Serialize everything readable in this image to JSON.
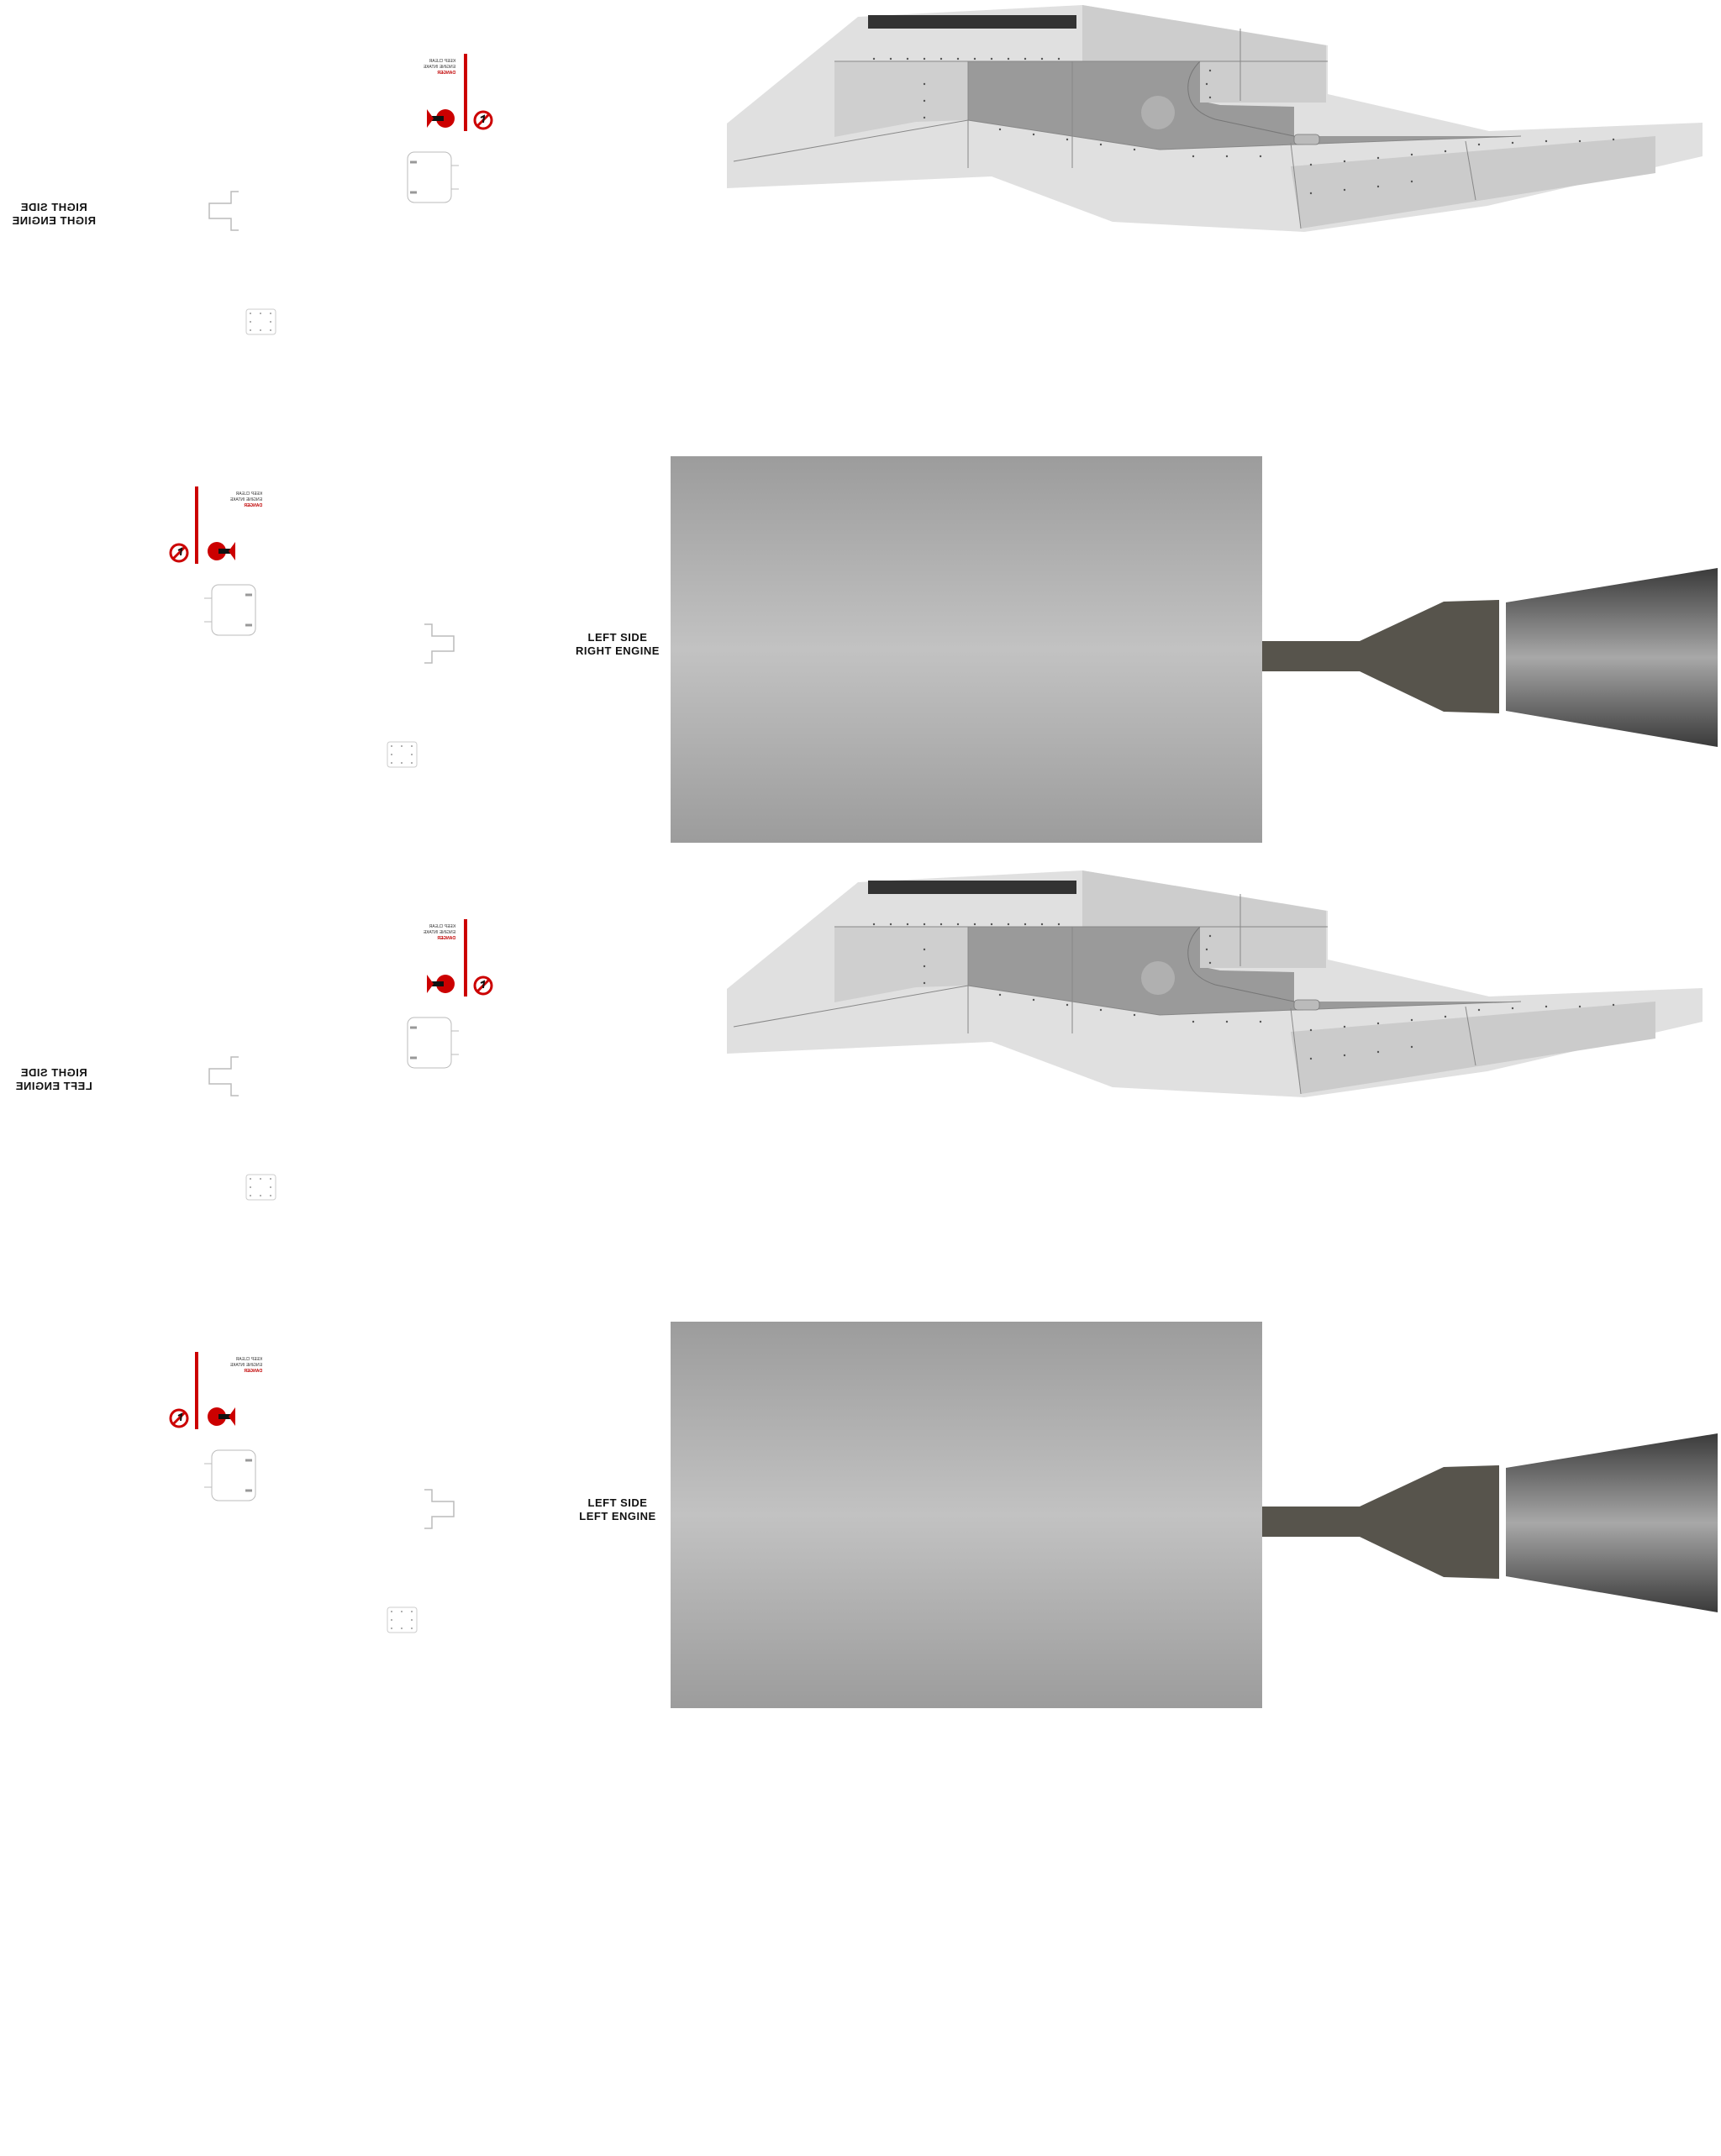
{
  "texture_sheet": {
    "panels": [
      {
        "id": "right-engine-right-side",
        "side_label": "RIGHT SIDE",
        "engine_label": "RIGHT ENGINE",
        "mirrored_text": true,
        "decal": {
          "warning_line_1": "DANGER",
          "warning_line_2": "ENGINE INTAKE",
          "warning_line_3": "KEEP CLEAR"
        }
      },
      {
        "id": "right-engine-left-side",
        "side_label": "LEFT SIDE",
        "engine_label": "RIGHT ENGINE",
        "mirrored_text": false,
        "decal": {
          "warning_line_1": "DANGER",
          "warning_line_2": "ENGINE INTAKE",
          "warning_line_3": "KEEP CLEAR"
        }
      },
      {
        "id": "left-engine-right-side",
        "side_label": "RIGHT SIDE",
        "engine_label": "LEFT ENGINE",
        "mirrored_text": true,
        "decal": {
          "warning_line_1": "DANGER",
          "warning_line_2": "ENGINE INTAKE",
          "warning_line_3": "KEEP CLEAR"
        }
      },
      {
        "id": "left-engine-left-side",
        "side_label": "LEFT SIDE",
        "engine_label": "LEFT ENGINE",
        "mirrored_text": false,
        "decal": {
          "warning_line_1": "DANGER",
          "warning_line_2": "ENGINE INTAKE",
          "warning_line_3": "KEEP CLEAR"
        }
      }
    ],
    "colors": {
      "background": "#ffffff",
      "panel_light": "#e0e0e0",
      "panel_mid": "#c8c8c8",
      "panel_dark": "#9a9a9a",
      "stripe_dark": "#333333",
      "rivet": "#555555",
      "warning_red": "#cc0000",
      "shaft": "#57544c",
      "nozzle_dark": "#3c3c3c",
      "nozzle_light": "#a8a8a8",
      "drum_edge": "#9c9c9c",
      "drum_center": "#c2c2c2"
    },
    "icons": {
      "no_step": "no-step-icon",
      "intake_hazard": "intake-hazard-icon",
      "access_panel": "access-panel-icon",
      "bracket": "bracket-icon",
      "small_plate": "small-plate-icon"
    }
  }
}
